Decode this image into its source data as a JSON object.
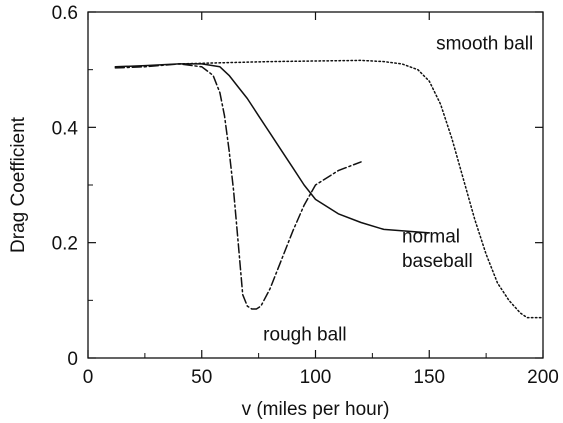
{
  "chart_data": {
    "type": "line",
    "xlabel": "v (miles per hour)",
    "ylabel": "Drag Coefficient",
    "xlim": [
      0,
      200
    ],
    "ylim": [
      0,
      0.6
    ],
    "x_ticks": [
      "0",
      "50",
      "100",
      "150",
      "200"
    ],
    "y_ticks": [
      "0",
      "0.2",
      "0.4",
      "0.6"
    ],
    "grid": false,
    "series": [
      {
        "name": "smooth ball",
        "style": "dotted",
        "x": [
          40,
          60,
          80,
          100,
          120,
          130,
          138,
          145,
          150,
          155,
          160,
          165,
          170,
          175,
          180,
          185,
          190,
          193,
          197,
          200
        ],
        "y": [
          0.51,
          0.512,
          0.514,
          0.515,
          0.516,
          0.514,
          0.51,
          0.5,
          0.48,
          0.44,
          0.38,
          0.31,
          0.24,
          0.18,
          0.13,
          0.1,
          0.078,
          0.07,
          0.07,
          0.07
        ]
      },
      {
        "name": "normal baseball",
        "style": "solid",
        "x": [
          12,
          25,
          40,
          50,
          58,
          62,
          66,
          70,
          75,
          80,
          85,
          90,
          95,
          100,
          110,
          120,
          130,
          140,
          150
        ],
        "y": [
          0.505,
          0.507,
          0.51,
          0.51,
          0.505,
          0.49,
          0.47,
          0.45,
          0.42,
          0.39,
          0.36,
          0.33,
          0.3,
          0.275,
          0.25,
          0.235,
          0.223,
          0.22,
          0.217
        ]
      },
      {
        "name": "rough ball",
        "style": "dash-dot",
        "x": [
          12,
          25,
          40,
          50,
          55,
          58,
          60,
          62,
          64,
          66,
          68,
          70,
          72,
          74,
          76,
          80,
          85,
          90,
          95,
          100,
          110,
          120
        ],
        "y": [
          0.503,
          0.505,
          0.51,
          0.505,
          0.49,
          0.46,
          0.42,
          0.36,
          0.29,
          0.2,
          0.11,
          0.09,
          0.085,
          0.085,
          0.09,
          0.12,
          0.17,
          0.22,
          0.265,
          0.3,
          0.325,
          0.34
        ]
      }
    ],
    "annotations": [
      {
        "text": "smooth ball",
        "x": 153,
        "y": 0.535
      },
      {
        "text": "normal",
        "x": 138,
        "y": 0.2
      },
      {
        "text": "baseball",
        "x": 138,
        "y": 0.158
      },
      {
        "text": "rough ball",
        "x": 77,
        "y": 0.03
      }
    ]
  }
}
